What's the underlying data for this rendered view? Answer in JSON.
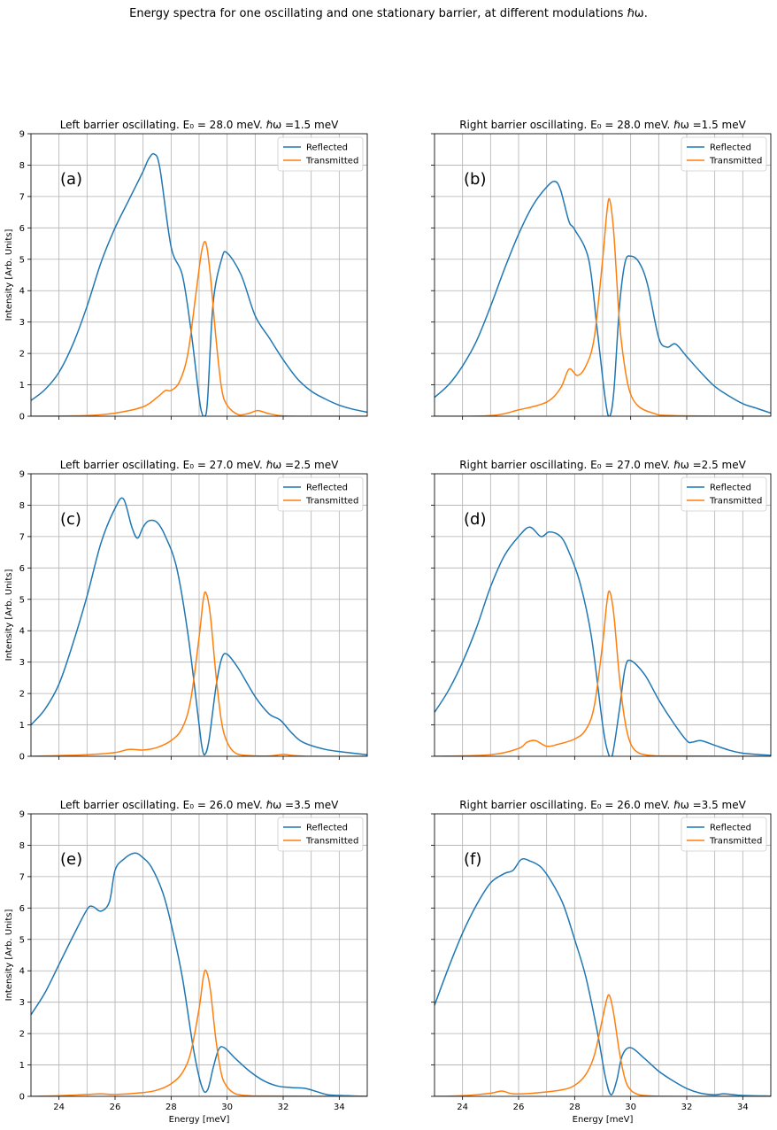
{
  "figure": {
    "suptitle": "Energy spectra for one oscillating and one stationary barrier, at different modulations ℏω.",
    "colors": {
      "reflected": "#1f77b4",
      "transmitted": "#ff7f0e",
      "grid": "#b0b0b0"
    }
  },
  "chart_data": [
    {
      "type": "line",
      "panel": "(a)",
      "title": "Left barrier oscillating. E₀ = 28.0 meV. ℏω =1.5 meV",
      "xlabel": "",
      "ylabel": "Intensity [Arb. Units]",
      "xlim": [
        23,
        35
      ],
      "ylim": [
        0,
        9
      ],
      "grid": true,
      "legend": "upper-right",
      "xticks": [
        "24",
        "26",
        "28",
        "30",
        "32",
        "34"
      ],
      "yticks": [
        "0",
        "1",
        "2",
        "3",
        "4",
        "5",
        "6",
        "7",
        "8",
        "9"
      ],
      "series": [
        {
          "name": "Reflected",
          "color": "#1f77b4",
          "x": [
            23,
            23.5,
            24,
            24.5,
            25,
            25.5,
            26,
            26.5,
            27,
            27.2,
            27.4,
            27.6,
            28,
            28.4,
            28.7,
            29,
            29.1,
            29.2,
            29.3,
            29.5,
            29.8,
            30,
            30.5,
            31,
            31.5,
            32,
            32.5,
            33,
            33.5,
            34,
            34.5,
            35
          ],
          "y": [
            0.5,
            0.85,
            1.4,
            2.3,
            3.5,
            4.9,
            6.0,
            6.9,
            7.8,
            8.2,
            8.35,
            7.9,
            5.4,
            4.5,
            2.8,
            0.6,
            0.1,
            0.0,
            0.5,
            3.6,
            5.0,
            5.2,
            4.5,
            3.2,
            2.5,
            1.8,
            1.2,
            0.8,
            0.55,
            0.35,
            0.22,
            0.13
          ]
        },
        {
          "name": "Transmitted",
          "color": "#ff7f0e",
          "x": [
            23,
            25,
            26,
            27,
            27.5,
            27.8,
            28,
            28.3,
            28.6,
            28.9,
            29.1,
            29.25,
            29.4,
            29.6,
            29.8,
            30,
            30.4,
            30.8,
            31.1,
            31.5,
            32,
            33,
            35
          ],
          "y": [
            0,
            0.02,
            0.1,
            0.3,
            0.6,
            0.82,
            0.82,
            1.1,
            2.0,
            4.0,
            5.3,
            5.5,
            4.5,
            2.5,
            0.9,
            0.35,
            0.05,
            0.1,
            0.18,
            0.08,
            0.01,
            0,
            0
          ]
        }
      ]
    },
    {
      "type": "line",
      "panel": "(b)",
      "title": "Right barrier oscillating. E₀ = 28.0 meV. ℏω =1.5 meV",
      "xlabel": "",
      "ylabel": "",
      "xlim": [
        23,
        35
      ],
      "ylim": [
        0,
        9
      ],
      "grid": true,
      "legend": "upper-right",
      "xticks": [
        "24",
        "26",
        "28",
        "30",
        "32",
        "34"
      ],
      "yticks": [
        "0",
        "1",
        "2",
        "3",
        "4",
        "5",
        "6",
        "7",
        "8",
        "9"
      ],
      "series": [
        {
          "name": "Reflected",
          "color": "#1f77b4",
          "x": [
            23,
            23.5,
            24,
            24.5,
            25,
            25.5,
            26,
            26.5,
            27,
            27.3,
            27.5,
            27.8,
            28,
            28.5,
            28.8,
            29.1,
            29.25,
            29.4,
            29.6,
            29.8,
            30,
            30.3,
            30.6,
            31,
            31.3,
            31.6,
            32,
            32.5,
            33,
            33.5,
            34,
            34.5,
            35
          ],
          "y": [
            0.6,
            1.0,
            1.6,
            2.4,
            3.5,
            4.7,
            5.8,
            6.7,
            7.3,
            7.48,
            7.2,
            6.2,
            5.95,
            5.0,
            2.8,
            0.5,
            0.0,
            0.8,
            3.5,
            4.9,
            5.1,
            4.9,
            4.2,
            2.5,
            2.2,
            2.3,
            1.9,
            1.4,
            0.95,
            0.65,
            0.4,
            0.25,
            0.1
          ]
        },
        {
          "name": "Transmitted",
          "color": "#ff7f0e",
          "x": [
            23,
            25,
            26,
            27,
            27.5,
            27.8,
            28.1,
            28.4,
            28.7,
            29,
            29.15,
            29.25,
            29.4,
            29.6,
            29.8,
            30,
            30.3,
            30.8,
            31.5,
            35
          ],
          "y": [
            0,
            0.02,
            0.2,
            0.45,
            0.9,
            1.5,
            1.3,
            1.6,
            2.5,
            5.0,
            6.5,
            6.9,
            5.8,
            3.0,
            1.5,
            0.7,
            0.3,
            0.1,
            0.02,
            0
          ]
        }
      ]
    },
    {
      "type": "line",
      "panel": "(c)",
      "title": "Left barrier oscillating. E₀ = 27.0 meV. ℏω =2.5 meV",
      "xlabel": "",
      "ylabel": "Intensity [Arb. Units]",
      "xlim": [
        23,
        35
      ],
      "ylim": [
        0,
        9
      ],
      "grid": true,
      "legend": "upper-right",
      "xticks": [
        "24",
        "26",
        "28",
        "30",
        "32",
        "34"
      ],
      "yticks": [
        "0",
        "1",
        "2",
        "3",
        "4",
        "5",
        "6",
        "7",
        "8",
        "9"
      ],
      "series": [
        {
          "name": "Reflected",
          "color": "#1f77b4",
          "x": [
            23,
            23.5,
            24,
            24.5,
            25,
            25.5,
            26,
            26.3,
            26.6,
            26.8,
            27,
            27.2,
            27.5,
            27.8,
            28.2,
            28.6,
            29,
            29.1,
            29.2,
            29.35,
            29.6,
            29.8,
            30,
            30.4,
            31,
            31.5,
            31.9,
            32.3,
            32.7,
            33.5,
            34.3,
            35
          ],
          "y": [
            1.0,
            1.5,
            2.3,
            3.6,
            5.1,
            6.8,
            7.9,
            8.2,
            7.3,
            6.95,
            7.3,
            7.5,
            7.45,
            7.0,
            6.0,
            3.9,
            1.0,
            0.3,
            0.05,
            0.5,
            2.2,
            3.1,
            3.25,
            2.8,
            1.9,
            1.35,
            1.15,
            0.75,
            0.45,
            0.22,
            0.12,
            0.05
          ]
        },
        {
          "name": "Transmitted",
          "color": "#ff7f0e",
          "x": [
            23,
            25,
            26,
            26.5,
            27,
            27.5,
            28,
            28.4,
            28.7,
            29,
            29.15,
            29.25,
            29.4,
            29.6,
            29.8,
            30,
            30.3,
            30.8,
            31.5,
            32,
            32.3,
            33,
            35
          ],
          "y": [
            0,
            0.05,
            0.12,
            0.22,
            0.2,
            0.28,
            0.5,
            0.9,
            1.8,
            3.8,
            5.0,
            5.2,
            4.5,
            2.6,
            1.1,
            0.45,
            0.1,
            0.02,
            0.01,
            0.06,
            0.03,
            0,
            0
          ]
        }
      ]
    },
    {
      "type": "line",
      "panel": "(d)",
      "title": "Right barrier oscillating. E₀ = 27.0 meV. ℏω =2.5 meV",
      "xlabel": "",
      "ylabel": "",
      "xlim": [
        23,
        35
      ],
      "ylim": [
        0,
        9
      ],
      "grid": true,
      "legend": "upper-right",
      "xticks": [
        "24",
        "26",
        "28",
        "30",
        "32",
        "34"
      ],
      "yticks": [
        "0",
        "1",
        "2",
        "3",
        "4",
        "5",
        "6",
        "7",
        "8",
        "9"
      ],
      "series": [
        {
          "name": "Reflected",
          "color": "#1f77b4",
          "x": [
            23,
            23.5,
            24,
            24.5,
            25,
            25.5,
            26,
            26.4,
            26.8,
            27.1,
            27.5,
            27.8,
            28.2,
            28.6,
            29,
            29.2,
            29.35,
            29.6,
            29.8,
            30,
            30.5,
            31,
            31.5,
            32,
            32.2,
            32.5,
            33,
            33.5,
            34,
            35
          ],
          "y": [
            1.4,
            2.1,
            3.0,
            4.1,
            5.4,
            6.4,
            7.0,
            7.3,
            7.0,
            7.15,
            7.0,
            6.5,
            5.5,
            3.8,
            1.0,
            0.1,
            0.05,
            1.5,
            2.8,
            3.05,
            2.6,
            1.8,
            1.1,
            0.5,
            0.45,
            0.5,
            0.35,
            0.2,
            0.1,
            0.03
          ]
        },
        {
          "name": "Transmitted",
          "color": "#ff7f0e",
          "x": [
            23,
            25,
            26,
            26.3,
            26.6,
            27,
            27.4,
            28,
            28.4,
            28.7,
            29,
            29.15,
            29.25,
            29.4,
            29.6,
            29.8,
            30,
            30.3,
            30.8,
            31.5,
            35
          ],
          "y": [
            0,
            0.05,
            0.25,
            0.45,
            0.5,
            0.32,
            0.38,
            0.55,
            0.85,
            1.6,
            3.6,
            4.9,
            5.25,
            4.5,
            2.5,
            1.1,
            0.4,
            0.1,
            0.02,
            0.01,
            0
          ]
        }
      ]
    },
    {
      "type": "line",
      "panel": "(e)",
      "title": "Left barrier oscillating. E₀ = 26.0 meV. ℏω =3.5 meV",
      "xlabel": "Energy [meV]",
      "ylabel": "Intensity [Arb. Units]",
      "xlim": [
        23,
        35
      ],
      "ylim": [
        0,
        9
      ],
      "grid": true,
      "legend": "upper-right",
      "xticks": [
        "24",
        "26",
        "28",
        "30",
        "32",
        "34"
      ],
      "yticks": [
        "0",
        "1",
        "2",
        "3",
        "4",
        "5",
        "6",
        "7",
        "8",
        "9"
      ],
      "series": [
        {
          "name": "Reflected",
          "color": "#1f77b4",
          "x": [
            23,
            23.5,
            24,
            24.5,
            25,
            25.2,
            25.5,
            25.8,
            26,
            26.3,
            26.7,
            27,
            27.3,
            27.7,
            28,
            28.4,
            28.8,
            29.1,
            29.3,
            29.5,
            29.7,
            29.9,
            30.3,
            30.8,
            31.3,
            31.8,
            32.3,
            32.8,
            33.2,
            33.6,
            34.3,
            35
          ],
          "y": [
            2.6,
            3.3,
            4.2,
            5.1,
            5.95,
            6.05,
            5.9,
            6.2,
            7.2,
            7.55,
            7.75,
            7.6,
            7.3,
            6.5,
            5.5,
            3.8,
            1.5,
            0.3,
            0.2,
            0.9,
            1.5,
            1.55,
            1.2,
            0.8,
            0.5,
            0.33,
            0.28,
            0.25,
            0.15,
            0.05,
            0.02,
            0
          ]
        },
        {
          "name": "Transmitted",
          "color": "#ff7f0e",
          "x": [
            23,
            24,
            25,
            25.5,
            26,
            27,
            27.5,
            28,
            28.4,
            28.7,
            29,
            29.15,
            29.25,
            29.4,
            29.6,
            29.8,
            30,
            30.3,
            30.8,
            31.5,
            35
          ],
          "y": [
            0,
            0.02,
            0.06,
            0.08,
            0.06,
            0.12,
            0.2,
            0.4,
            0.75,
            1.4,
            2.8,
            3.8,
            4.0,
            3.4,
            1.8,
            0.7,
            0.3,
            0.08,
            0.02,
            0.01,
            0
          ]
        }
      ]
    },
    {
      "type": "line",
      "panel": "(f)",
      "title": "Right barrier oscillating. E₀ = 26.0 meV. ℏω =3.5 meV",
      "xlabel": "Energy [meV]",
      "ylabel": "",
      "xlim": [
        23,
        35
      ],
      "ylim": [
        0,
        9
      ],
      "grid": true,
      "legend": "upper-right",
      "xticks": [
        "24",
        "26",
        "28",
        "30",
        "32",
        "34"
      ],
      "yticks": [
        "0",
        "1",
        "2",
        "3",
        "4",
        "5",
        "6",
        "7",
        "8",
        "9"
      ],
      "series": [
        {
          "name": "Reflected",
          "color": "#1f77b4",
          "x": [
            23,
            23.5,
            24,
            24.5,
            25,
            25.5,
            25.8,
            26.1,
            26.4,
            26.8,
            27.2,
            27.6,
            28,
            28.4,
            28.8,
            29.1,
            29.3,
            29.5,
            29.7,
            30,
            30.5,
            31,
            31.5,
            32,
            32.5,
            33,
            33.3,
            33.6,
            34,
            35
          ],
          "y": [
            2.9,
            4.1,
            5.2,
            6.1,
            6.8,
            7.1,
            7.2,
            7.55,
            7.5,
            7.3,
            6.8,
            6.1,
            5.0,
            3.8,
            2.1,
            0.6,
            0.05,
            0.5,
            1.3,
            1.55,
            1.2,
            0.8,
            0.5,
            0.25,
            0.1,
            0.05,
            0.08,
            0.06,
            0.03,
            0.01
          ]
        },
        {
          "name": "Transmitted",
          "color": "#ff7f0e",
          "x": [
            23,
            24,
            25,
            25.4,
            25.8,
            26.5,
            27.5,
            28,
            28.4,
            28.7,
            29,
            29.15,
            29.25,
            29.4,
            29.6,
            29.8,
            30,
            30.3,
            30.8,
            31.5,
            35
          ],
          "y": [
            0,
            0.02,
            0.1,
            0.17,
            0.08,
            0.1,
            0.2,
            0.35,
            0.7,
            1.3,
            2.5,
            3.1,
            3.2,
            2.6,
            1.4,
            0.55,
            0.2,
            0.05,
            0.01,
            0,
            0
          ]
        }
      ]
    }
  ]
}
